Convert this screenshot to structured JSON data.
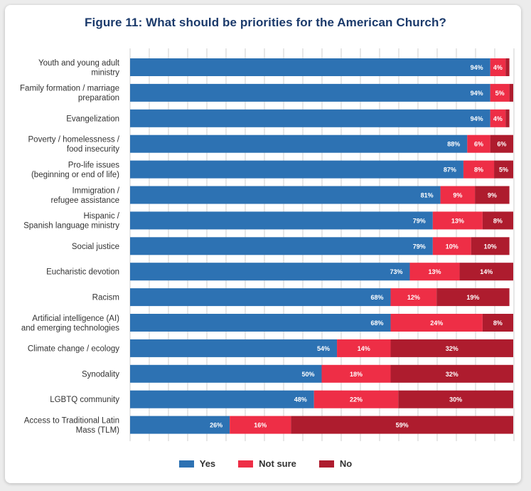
{
  "title": "Figure 11: What should be priorities for the American Church?",
  "colors": {
    "yes": "#2d72b3",
    "not_sure": "#ee2e46",
    "no": "#ae1c2e",
    "grid": "#cfcfcf",
    "label": "#333333"
  },
  "legend": [
    {
      "label": "Yes",
      "color": "#2d72b3"
    },
    {
      "label": "Not sure",
      "color": "#ee2e46"
    },
    {
      "label": "No",
      "color": "#ae1c2e"
    }
  ],
  "chart_data": {
    "type": "bar",
    "orientation": "horizontal",
    "stacked": true,
    "xlim": [
      0,
      100
    ],
    "grid": true,
    "legend_position": "bottom",
    "categories": [
      [
        "Youth and young adult",
        "ministry"
      ],
      [
        "Family formation / marriage",
        "preparation"
      ],
      [
        "Evangelization"
      ],
      [
        "Poverty / homelessness /",
        "food insecurity"
      ],
      [
        "Pro-life issues",
        "(beginning or end of life)"
      ],
      [
        "Immigration /",
        "refugee assistance"
      ],
      [
        "Hispanic /",
        "Spanish language ministry"
      ],
      [
        "Social justice"
      ],
      [
        "Eucharistic devotion"
      ],
      [
        "Racism"
      ],
      [
        "Artificial intelligence (AI)",
        "and emerging technologies"
      ],
      [
        "Climate change / ecology"
      ],
      [
        "Synodality"
      ],
      [
        "LGBTQ community"
      ],
      [
        "Access to Traditional Latin",
        "Mass (TLM)"
      ]
    ],
    "series": [
      {
        "name": "Yes",
        "values": [
          94,
          94,
          94,
          88,
          87,
          81,
          79,
          79,
          73,
          68,
          68,
          54,
          50,
          48,
          26
        ]
      },
      {
        "name": "Not sure",
        "values": [
          4,
          5,
          4,
          6,
          8,
          9,
          13,
          10,
          13,
          12,
          24,
          14,
          18,
          22,
          16
        ]
      },
      {
        "name": "No",
        "values": [
          1,
          1,
          1,
          6,
          5,
          9,
          8,
          10,
          14,
          19,
          8,
          32,
          32,
          30,
          59
        ]
      }
    ],
    "data_labels": {
      "Yes": [
        "94%",
        "94%",
        "94%",
        "88%",
        "87%",
        "81%",
        "79%",
        "79%",
        "73%",
        "68%",
        "68%",
        "54%",
        "50%",
        "48%",
        "26%"
      ],
      "Not sure": [
        "4%",
        "5%",
        "4%",
        "6%",
        "8%",
        "9%",
        "13%",
        "10%",
        "13%",
        "12%",
        "24%",
        "14%",
        "18%",
        "22%",
        "16%"
      ],
      "No": [
        "",
        "",
        "",
        "6%",
        "5%",
        "9%",
        "8%",
        "10%",
        "14%",
        "19%",
        "8%",
        "32%",
        "32%",
        "30%",
        "59%"
      ]
    }
  }
}
